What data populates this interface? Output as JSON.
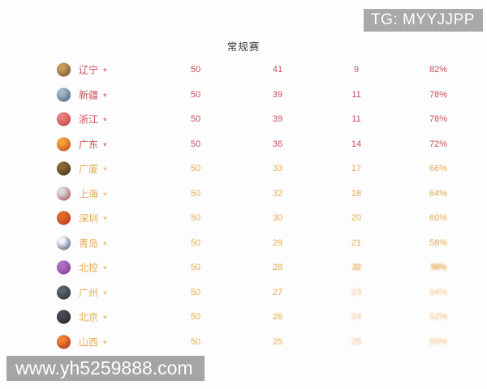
{
  "badge": {
    "text": "TG: MYYJJPP"
  },
  "title": "常规赛",
  "watermark": {
    "text": "www.yh5259888.com"
  },
  "colors": {
    "top_rank_text": "#c8515a",
    "lower_rank_text": "#e6ab55",
    "title_text": "#3b3b3b",
    "badge_bg": "#a9a9a9",
    "watermark_bg": "#a5a5a5",
    "page_bg": "#fdfdfd"
  },
  "table": {
    "columns": [
      "team",
      "games_played",
      "wins",
      "losses",
      "win_pct"
    ],
    "rows": [
      {
        "team": "辽宁",
        "star": "*",
        "played": "50",
        "wins": "41",
        "losses": "9",
        "pct": "82%",
        "tier": "top",
        "smudged": false,
        "logo": [
          "#c89a5c",
          "#6b4a2a"
        ],
        "logo_name": "liaoning-logo"
      },
      {
        "team": "新疆",
        "star": "*",
        "played": "50",
        "wins": "39",
        "losses": "11",
        "pct": "78%",
        "tier": "top",
        "smudged": false,
        "logo": [
          "#9fb4c4",
          "#3c5a76"
        ],
        "logo_name": "xinjiang-logo"
      },
      {
        "team": "浙江",
        "star": "*",
        "played": "50",
        "wins": "39",
        "losses": "11",
        "pct": "78%",
        "tier": "top",
        "smudged": false,
        "logo": [
          "#e87d82",
          "#c0392f"
        ],
        "logo_name": "zhejiang-logo"
      },
      {
        "team": "广东",
        "star": "*",
        "played": "50",
        "wins": "36",
        "losses": "14",
        "pct": "72%",
        "tier": "top",
        "smudged": false,
        "logo": [
          "#f0a335",
          "#c43a28"
        ],
        "logo_name": "guangdong-logo"
      },
      {
        "team": "广厦",
        "star": "*",
        "played": "50",
        "wins": "33",
        "losses": "17",
        "pct": "66%",
        "tier": "lower",
        "smudged": false,
        "logo": [
          "#8a6a32",
          "#3c2c18"
        ],
        "logo_name": "guangsha-logo"
      },
      {
        "team": "上海",
        "star": "*",
        "played": "50",
        "wins": "32",
        "losses": "18",
        "pct": "64%",
        "tier": "lower",
        "smudged": false,
        "logo": [
          "#d8dbdf",
          "#a84048"
        ],
        "logo_name": "shanghai-logo"
      },
      {
        "team": "深圳",
        "star": "*",
        "played": "50",
        "wins": "30",
        "losses": "20",
        "pct": "60%",
        "tier": "lower",
        "smudged": false,
        "logo": [
          "#e06a2c",
          "#b5301f"
        ],
        "logo_name": "shenzhen-logo"
      },
      {
        "team": "青岛",
        "star": "*",
        "played": "50",
        "wins": "29",
        "losses": "21",
        "pct": "58%",
        "tier": "lower",
        "smudged": false,
        "logo": [
          "#f2f4f6",
          "#35496e"
        ],
        "logo_name": "qingdao-logo"
      },
      {
        "team": "北控",
        "star": "*",
        "played": "50",
        "wins": "28",
        "losses": "22",
        "pct": "56%",
        "tier": "lower",
        "smudged": true,
        "logo": [
          "#b06ac0",
          "#7c3a92"
        ],
        "logo_name": "beikong-logo"
      },
      {
        "team": "广州",
        "star": "*",
        "played": "50",
        "wins": "27",
        "losses": "23",
        "pct": "54%",
        "tier": "lower",
        "smudged": true,
        "logo": [
          "#5a616e",
          "#23272f"
        ],
        "logo_name": "guangzhou-logo"
      },
      {
        "team": "北京",
        "star": "*",
        "played": "50",
        "wins": "26",
        "losses": "24",
        "pct": "52%",
        "tier": "lower",
        "smudged": true,
        "logo": [
          "#4a4a52",
          "#1f1f24"
        ],
        "logo_name": "beijing-logo"
      },
      {
        "team": "山西",
        "star": "*",
        "played": "50",
        "wins": "25",
        "losses": "25",
        "pct": "50%",
        "tier": "lower",
        "smudged": true,
        "logo": [
          "#f08030",
          "#a02818"
        ],
        "logo_name": "shanxi-logo"
      }
    ]
  }
}
